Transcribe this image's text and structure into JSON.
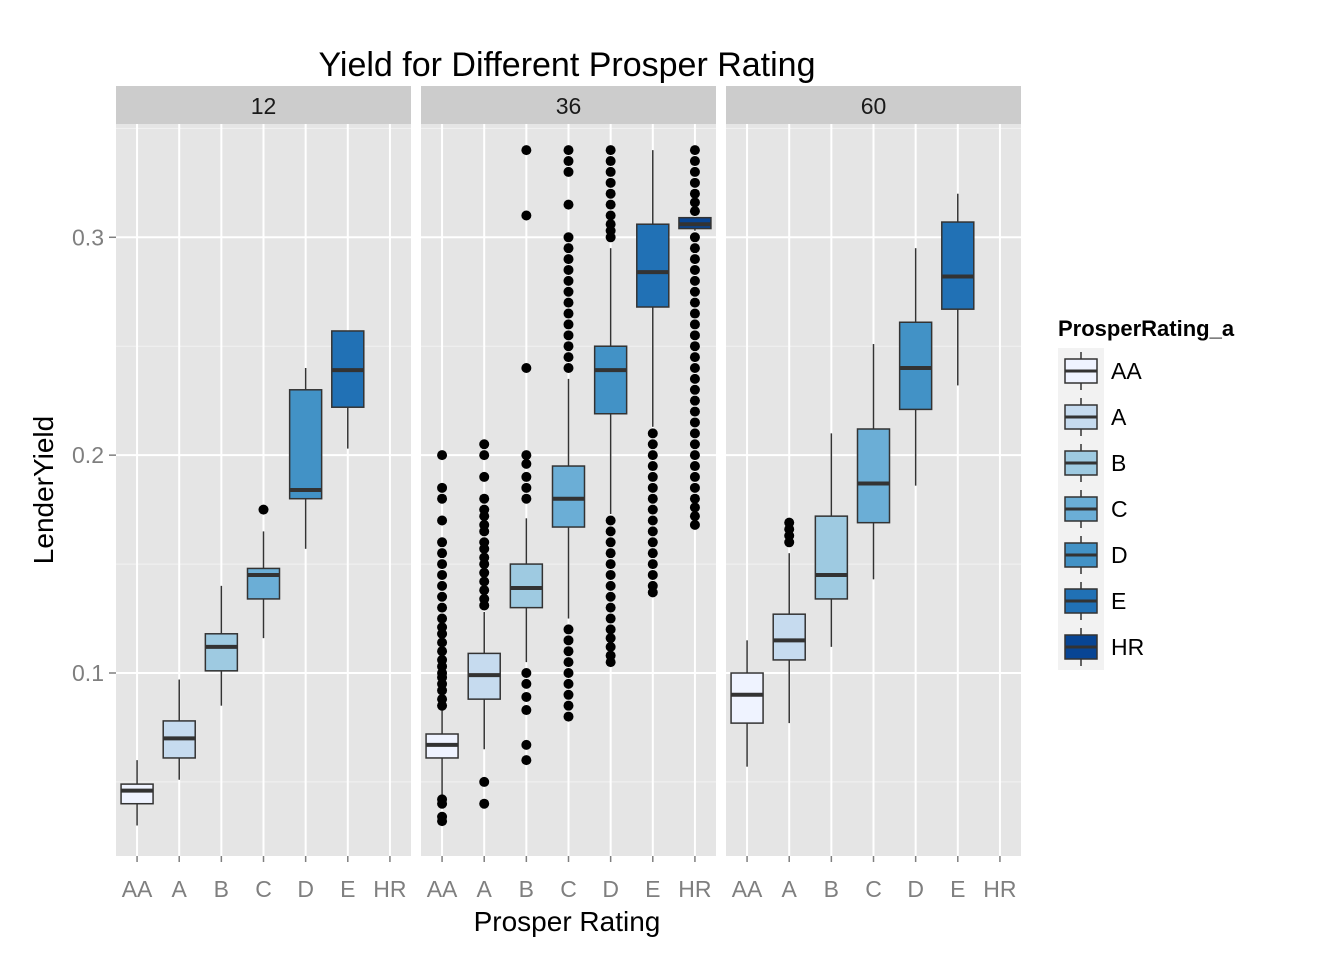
{
  "chart_data": {
    "type": "boxplot",
    "title": "Yield for Different Prosper Rating",
    "xlabel": "Prosper Rating",
    "ylabel": "LenderYield",
    "ylim": [
      0.016,
      0.352
    ],
    "yticks": [
      0.1,
      0.2,
      0.3
    ],
    "ytick_labels": [
      "0.1",
      "0.2",
      "0.3"
    ],
    "categories": [
      "AA",
      "A",
      "B",
      "C",
      "D",
      "E",
      "HR"
    ],
    "colors": [
      "#eff3ff",
      "#c6dbef",
      "#9ecae1",
      "#6baed6",
      "#4292c6",
      "#2171b5",
      "#084594"
    ],
    "legend": {
      "title": "ProsperRating_a",
      "position": "right",
      "entries": [
        "AA",
        "A",
        "B",
        "C",
        "D",
        "E",
        "HR"
      ]
    },
    "panels": [
      {
        "label": "12",
        "boxes": [
          {
            "cat": "AA",
            "whisker_low": 0.03,
            "q1": 0.04,
            "median": 0.046,
            "q3": 0.049,
            "whisker_high": 0.06,
            "outliers": []
          },
          {
            "cat": "A",
            "whisker_low": 0.051,
            "q1": 0.061,
            "median": 0.07,
            "q3": 0.078,
            "whisker_high": 0.097,
            "outliers": []
          },
          {
            "cat": "B",
            "whisker_low": 0.085,
            "q1": 0.101,
            "median": 0.112,
            "q3": 0.118,
            "whisker_high": 0.14,
            "outliers": []
          },
          {
            "cat": "C",
            "whisker_low": 0.116,
            "q1": 0.134,
            "median": 0.145,
            "q3": 0.148,
            "whisker_high": 0.165,
            "outliers": [
              0.175
            ]
          },
          {
            "cat": "D",
            "whisker_low": 0.157,
            "q1": 0.18,
            "median": 0.184,
            "q3": 0.23,
            "whisker_high": 0.24,
            "outliers": []
          },
          {
            "cat": "E",
            "whisker_low": 0.203,
            "q1": 0.222,
            "median": 0.239,
            "q3": 0.257,
            "whisker_high": 0.257,
            "outliers": []
          }
        ]
      },
      {
        "label": "36",
        "boxes": [
          {
            "cat": "AA",
            "whisker_low": 0.044,
            "q1": 0.061,
            "median": 0.067,
            "q3": 0.072,
            "whisker_high": 0.083,
            "outliers": [
              0.032,
              0.034,
              0.04,
              0.042,
              0.085,
              0.088,
              0.092,
              0.095,
              0.098,
              0.1,
              0.103,
              0.106,
              0.11,
              0.114,
              0.118,
              0.121,
              0.125,
              0.13,
              0.135,
              0.14,
              0.145,
              0.15,
              0.155,
              0.16,
              0.17,
              0.18,
              0.185,
              0.2
            ]
          },
          {
            "cat": "A",
            "whisker_low": 0.065,
            "q1": 0.088,
            "median": 0.099,
            "q3": 0.109,
            "whisker_high": 0.128,
            "outliers": [
              0.04,
              0.05,
              0.131,
              0.134,
              0.138,
              0.142,
              0.146,
              0.15,
              0.153,
              0.157,
              0.16,
              0.165,
              0.168,
              0.172,
              0.175,
              0.18,
              0.19,
              0.2,
              0.205
            ]
          },
          {
            "cat": "B",
            "whisker_low": 0.105,
            "q1": 0.13,
            "median": 0.139,
            "q3": 0.15,
            "whisker_high": 0.171,
            "outliers": [
              0.06,
              0.067,
              0.083,
              0.089,
              0.095,
              0.1,
              0.18,
              0.185,
              0.19,
              0.196,
              0.2,
              0.24,
              0.31,
              0.34
            ]
          },
          {
            "cat": "C",
            "whisker_low": 0.125,
            "q1": 0.167,
            "median": 0.18,
            "q3": 0.195,
            "whisker_high": 0.235,
            "outliers": [
              0.08,
              0.085,
              0.09,
              0.095,
              0.1,
              0.105,
              0.11,
              0.115,
              0.12,
              0.24,
              0.245,
              0.25,
              0.255,
              0.26,
              0.265,
              0.27,
              0.275,
              0.28,
              0.285,
              0.29,
              0.295,
              0.3,
              0.315,
              0.33,
              0.335,
              0.34
            ]
          },
          {
            "cat": "D",
            "whisker_low": 0.173,
            "q1": 0.219,
            "median": 0.239,
            "q3": 0.25,
            "whisker_high": 0.295,
            "outliers": [
              0.105,
              0.108,
              0.112,
              0.116,
              0.12,
              0.125,
              0.13,
              0.135,
              0.14,
              0.145,
              0.15,
              0.155,
              0.16,
              0.165,
              0.17,
              0.3,
              0.303,
              0.306,
              0.31,
              0.315,
              0.32,
              0.325,
              0.33,
              0.335,
              0.34
            ]
          },
          {
            "cat": "E",
            "whisker_low": 0.213,
            "q1": 0.268,
            "median": 0.284,
            "q3": 0.306,
            "whisker_high": 0.34,
            "outliers": [
              0.137,
              0.14,
              0.145,
              0.15,
              0.155,
              0.16,
              0.165,
              0.17,
              0.175,
              0.18,
              0.185,
              0.19,
              0.195,
              0.2,
              0.205,
              0.21
            ]
          },
          {
            "cat": "HR",
            "whisker_low": 0.303,
            "q1": 0.304,
            "median": 0.306,
            "q3": 0.309,
            "whisker_high": 0.309,
            "outliers": [
              0.168,
              0.172,
              0.176,
              0.18,
              0.185,
              0.19,
              0.195,
              0.2,
              0.205,
              0.21,
              0.215,
              0.22,
              0.225,
              0.23,
              0.235,
              0.24,
              0.245,
              0.25,
              0.255,
              0.26,
              0.265,
              0.27,
              0.275,
              0.28,
              0.285,
              0.29,
              0.295,
              0.3,
              0.312,
              0.316,
              0.32,
              0.325,
              0.33,
              0.335,
              0.34
            ]
          }
        ]
      },
      {
        "label": "60",
        "boxes": [
          {
            "cat": "AA",
            "whisker_low": 0.057,
            "q1": 0.077,
            "median": 0.09,
            "q3": 0.1,
            "whisker_high": 0.115,
            "outliers": []
          },
          {
            "cat": "A",
            "whisker_low": 0.077,
            "q1": 0.106,
            "median": 0.115,
            "q3": 0.127,
            "whisker_high": 0.155,
            "outliers": [
              0.16,
              0.163,
              0.166,
              0.169
            ]
          },
          {
            "cat": "B",
            "whisker_low": 0.112,
            "q1": 0.134,
            "median": 0.145,
            "q3": 0.172,
            "whisker_high": 0.21,
            "outliers": []
          },
          {
            "cat": "C",
            "whisker_low": 0.143,
            "q1": 0.169,
            "median": 0.187,
            "q3": 0.212,
            "whisker_high": 0.251,
            "outliers": []
          },
          {
            "cat": "D",
            "whisker_low": 0.186,
            "q1": 0.221,
            "median": 0.24,
            "q3": 0.261,
            "whisker_high": 0.295,
            "outliers": []
          },
          {
            "cat": "E",
            "whisker_low": 0.232,
            "q1": 0.267,
            "median": 0.282,
            "q3": 0.307,
            "whisker_high": 0.32,
            "outliers": []
          }
        ]
      }
    ]
  }
}
